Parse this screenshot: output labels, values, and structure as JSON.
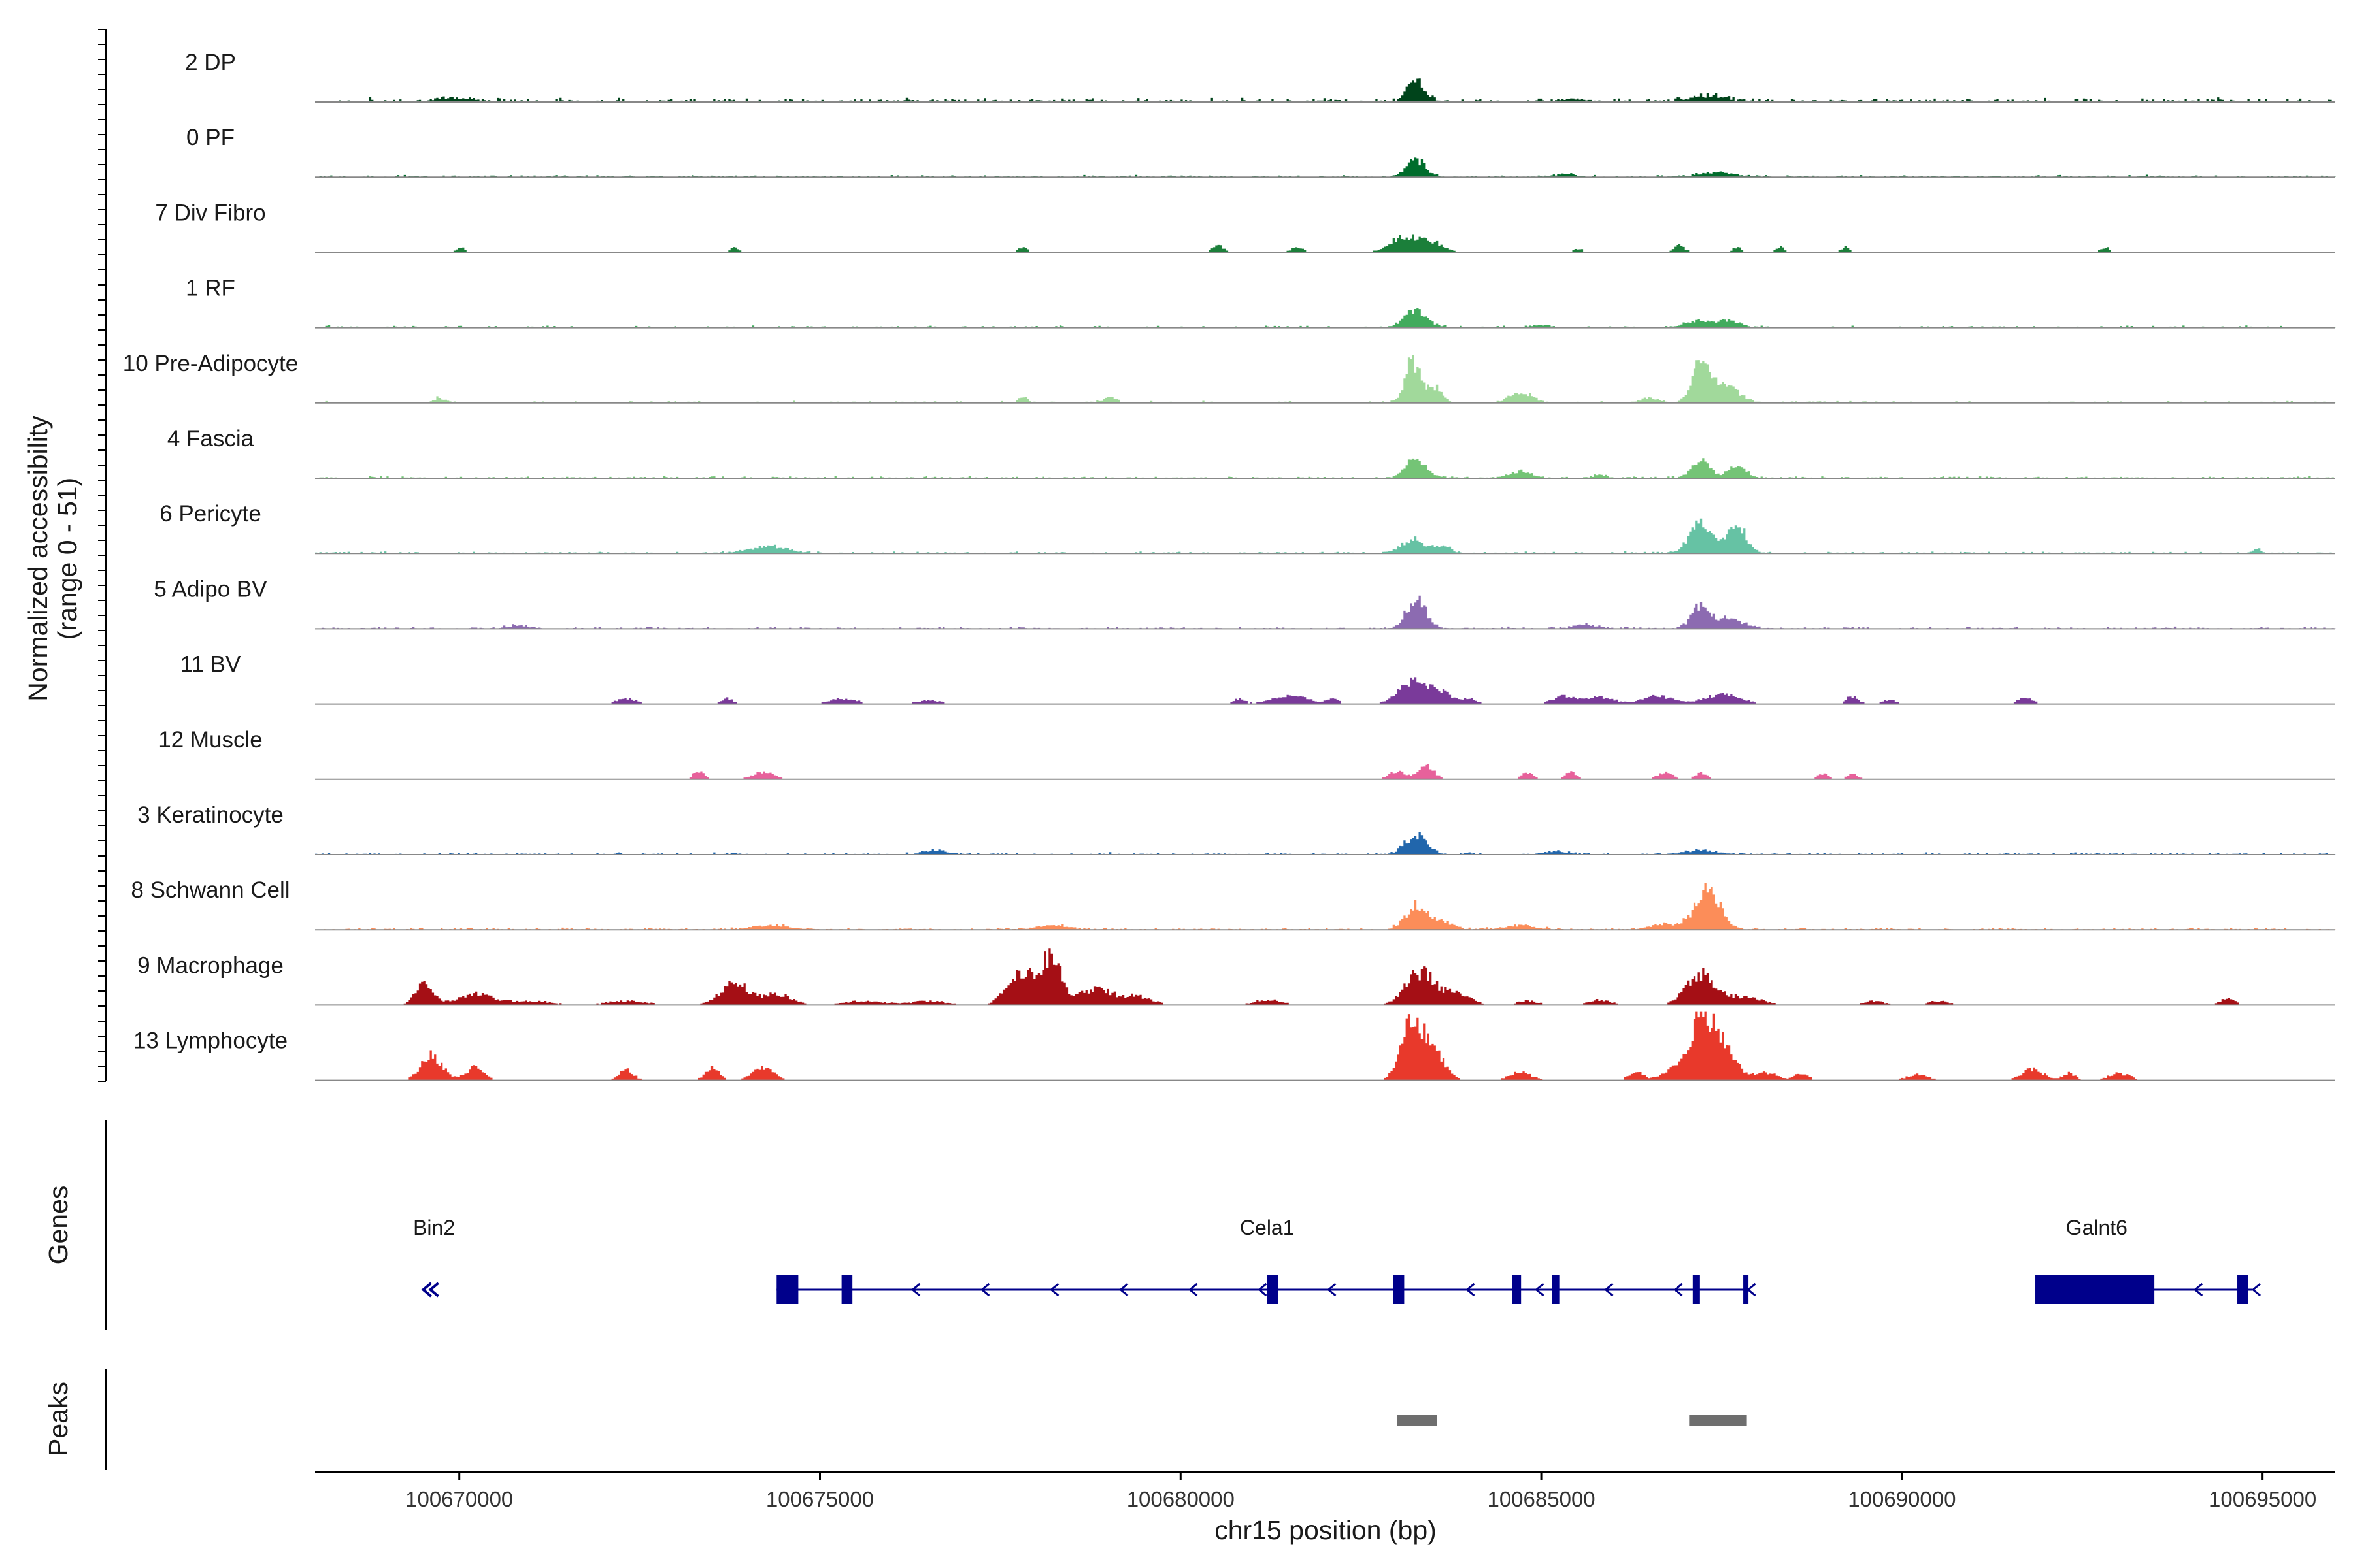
{
  "chart_data": {
    "type": "coverage",
    "chromosome": "chr15",
    "region": [
      100668000,
      100696000
    ],
    "xlabel": "chr15 position (bp)",
    "ylabel_line1": "Normalized accessibility",
    "ylabel_line2": "(range 0 - 51)",
    "y_range": [
      0,
      51
    ],
    "x_ticks": [
      100670000,
      100675000,
      100680000,
      100685000,
      100690000,
      100695000
    ],
    "x_tick_labels": [
      "100670000",
      "100675000",
      "100680000",
      "100685000",
      "100690000",
      "100695000"
    ],
    "tracks": [
      {
        "name": "2 DP",
        "color": "#00441b",
        "mode": "continuous",
        "baseline": 2,
        "peaks": [
          [
            100683250,
            14,
            120
          ],
          [
            100687300,
            4,
            250
          ],
          [
            100670000,
            2,
            300
          ],
          [
            100685400,
            2,
            200
          ]
        ]
      },
      {
        "name": "0 PF",
        "color": "#006d2c",
        "mode": "continuous",
        "baseline": 1,
        "peaks": [
          [
            100683250,
            12,
            130
          ],
          [
            100687400,
            3,
            250
          ],
          [
            100685300,
            2,
            150
          ]
        ]
      },
      {
        "name": "7 Div Fibro",
        "color": "#1b7f3a",
        "mode": "sparse",
        "peaks": [
          [
            100683100,
            12,
            200
          ],
          [
            100683500,
            6,
            150
          ],
          [
            100680500,
            5,
            80
          ],
          [
            100681600,
            4,
            80
          ],
          [
            100670000,
            4,
            60
          ],
          [
            100673800,
            4,
            60
          ],
          [
            100677800,
            4,
            60
          ],
          [
            100686900,
            5,
            80
          ],
          [
            100687700,
            4,
            60
          ],
          [
            100688300,
            4,
            60
          ],
          [
            100689200,
            4,
            60
          ],
          [
            100692800,
            4,
            60
          ],
          [
            100685500,
            3,
            60
          ]
        ]
      },
      {
        "name": "1 RF",
        "color": "#41ab5d",
        "mode": "continuous",
        "baseline": 1,
        "peaks": [
          [
            100683250,
            13,
            150
          ],
          [
            100687200,
            5,
            200
          ],
          [
            100687600,
            4,
            150
          ],
          [
            100685000,
            2,
            120
          ]
        ]
      },
      {
        "name": "10 Pre-Adipocyte",
        "color": "#a1d99b",
        "mode": "continuous",
        "baseline": 1,
        "peaks": [
          [
            100683200,
            30,
            100
          ],
          [
            100683500,
            12,
            100
          ],
          [
            100687200,
            26,
            120
          ],
          [
            100687500,
            14,
            200
          ],
          [
            100684700,
            8,
            150
          ],
          [
            100686500,
            4,
            120
          ],
          [
            100669700,
            3,
            80
          ],
          [
            100677800,
            5,
            60
          ],
          [
            100679000,
            4,
            80
          ]
        ]
      },
      {
        "name": "4 Fascia",
        "color": "#74c476",
        "mode": "continuous",
        "baseline": 1,
        "peaks": [
          [
            100683250,
            14,
            140
          ],
          [
            100687200,
            12,
            130
          ],
          [
            100687700,
            10,
            120
          ],
          [
            100684700,
            5,
            150
          ],
          [
            100685800,
            2,
            100
          ]
        ]
      },
      {
        "name": "6 Pericyte",
        "color": "#66c2a4",
        "mode": "continuous",
        "baseline": 1,
        "peaks": [
          [
            100687200,
            24,
            150
          ],
          [
            100687700,
            20,
            130
          ],
          [
            100683200,
            10,
            150
          ],
          [
            100674300,
            5,
            250
          ],
          [
            100683600,
            5,
            120
          ],
          [
            100694900,
            3,
            60
          ]
        ]
      },
      {
        "name": "5 Adipo BV",
        "color": "#8c6bb1",
        "mode": "continuous",
        "baseline": 1,
        "peaks": [
          [
            100683250,
            22,
            130
          ],
          [
            100687200,
            16,
            130
          ],
          [
            100687600,
            6,
            200
          ],
          [
            100685600,
            3,
            150
          ],
          [
            100670800,
            2,
            150
          ]
        ]
      },
      {
        "name": "11 BV",
        "color": "#7a3a9a",
        "mode": "sparse",
        "peaks": [
          [
            100683200,
            16,
            200
          ],
          [
            100683600,
            8,
            150
          ],
          [
            100684000,
            4,
            100
          ],
          [
            100672300,
            4,
            150
          ],
          [
            100673700,
            4,
            80
          ],
          [
            100675300,
            4,
            200
          ],
          [
            100676500,
            3,
            150
          ],
          [
            100680800,
            4,
            80
          ],
          [
            100681500,
            6,
            250
          ],
          [
            100682100,
            4,
            80
          ],
          [
            100685300,
            6,
            150
          ],
          [
            100685800,
            5,
            200
          ],
          [
            100686600,
            6,
            200
          ],
          [
            100687500,
            7,
            250
          ],
          [
            100689300,
            6,
            80
          ],
          [
            100689800,
            3,
            100
          ],
          [
            100691700,
            5,
            100
          ]
        ]
      },
      {
        "name": "12 Muscle",
        "color": "#e7619b",
        "mode": "sparse",
        "peaks": [
          [
            100683400,
            10,
            100
          ],
          [
            100683000,
            6,
            120
          ],
          [
            100673300,
            6,
            80
          ],
          [
            100674200,
            5,
            150
          ],
          [
            100684800,
            5,
            80
          ],
          [
            100685400,
            5,
            80
          ],
          [
            100686700,
            5,
            100
          ],
          [
            100687200,
            5,
            80
          ],
          [
            100688900,
            4,
            80
          ],
          [
            100689300,
            4,
            80
          ]
        ]
      },
      {
        "name": "3 Keratinocyte",
        "color": "#2166ac",
        "mode": "continuous",
        "baseline": 1,
        "peaks": [
          [
            100683250,
            14,
            150
          ],
          [
            100687200,
            3,
            200
          ],
          [
            100676600,
            3,
            150
          ],
          [
            100685200,
            2,
            150
          ]
        ]
      },
      {
        "name": "8 Schwann Cell",
        "color": "#fc8d59",
        "mode": "continuous",
        "baseline": 1,
        "peaks": [
          [
            100687300,
            30,
            170
          ],
          [
            100683250,
            18,
            140
          ],
          [
            100683600,
            6,
            150
          ],
          [
            100686700,
            4,
            200
          ],
          [
            100674300,
            3,
            250
          ],
          [
            100678200,
            3,
            200
          ],
          [
            100684700,
            3,
            200
          ]
        ]
      },
      {
        "name": "9 Macrophage",
        "color": "#a50f15",
        "mode": "sparse",
        "peaks": [
          [
            100669500,
            16,
            120
          ],
          [
            100670200,
            8,
            250
          ],
          [
            100673800,
            16,
            200
          ],
          [
            100674400,
            8,
            200
          ],
          [
            100677800,
            26,
            200
          ],
          [
            100678200,
            34,
            120
          ],
          [
            100678800,
            12,
            250
          ],
          [
            100679400,
            6,
            200
          ],
          [
            100681200,
            4,
            200
          ],
          [
            100683300,
            24,
            200
          ],
          [
            100683800,
            8,
            200
          ],
          [
            100687200,
            22,
            200
          ],
          [
            100687800,
            6,
            250
          ],
          [
            100685800,
            4,
            150
          ],
          [
            100684800,
            3,
            150
          ],
          [
            100671000,
            3,
            300
          ],
          [
            100672300,
            3,
            300
          ],
          [
            100675600,
            3,
            300
          ],
          [
            100676500,
            3,
            250
          ],
          [
            100689600,
            3,
            150
          ],
          [
            100690500,
            3,
            150
          ],
          [
            100694500,
            5,
            100
          ]
        ]
      },
      {
        "name": "13 Lymphocyte",
        "color": "#e8392b",
        "mode": "sparse",
        "peaks": [
          [
            100683200,
            44,
            150
          ],
          [
            100683500,
            20,
            150
          ],
          [
            100687200,
            44,
            150
          ],
          [
            100687500,
            26,
            180
          ],
          [
            100669600,
            18,
            150
          ],
          [
            100670200,
            10,
            120
          ],
          [
            100672300,
            8,
            100
          ],
          [
            100673500,
            9,
            100
          ],
          [
            100674200,
            9,
            150
          ],
          [
            100684700,
            6,
            150
          ],
          [
            100686300,
            6,
            100
          ],
          [
            100686800,
            8,
            150
          ],
          [
            100688100,
            6,
            150
          ],
          [
            100688600,
            5,
            100
          ],
          [
            100690200,
            4,
            150
          ],
          [
            100691800,
            8,
            150
          ],
          [
            100692300,
            5,
            100
          ],
          [
            100693000,
            5,
            150
          ]
        ]
      }
    ],
    "genes_title": "Genes",
    "genes": [
      {
        "name": "Bin2",
        "label_x": 100669650,
        "strand": "-",
        "start": 100669500,
        "end": 100669700,
        "exons": []
      },
      {
        "name": "Cela1",
        "label_x": 100681200,
        "strand": "-",
        "start": 100674400,
        "end": 100687850,
        "exons": [
          [
            100674400,
            100674700
          ],
          [
            100675300,
            100675450
          ],
          [
            100681200,
            100681350
          ],
          [
            100682950,
            100683100
          ],
          [
            100684600,
            100684720
          ],
          [
            100685150,
            100685250
          ],
          [
            100687100,
            100687200
          ],
          [
            100687800,
            100687850
          ]
        ]
      },
      {
        "name": "Galnt6",
        "label_x": 100692700,
        "strand": "-",
        "start": 100691850,
        "end": 100694850,
        "exons": [
          [
            100691850,
            100693500
          ],
          [
            100694650,
            100694800
          ]
        ]
      }
    ],
    "peaks_title": "Peaks",
    "peak_regions": [
      [
        100683000,
        100683550
      ],
      [
        100687050,
        100687850
      ]
    ],
    "colors": {
      "gene": "#00008b",
      "peak": "#6e6e6e",
      "axis": "#000000",
      "baseline": "#888888"
    }
  }
}
